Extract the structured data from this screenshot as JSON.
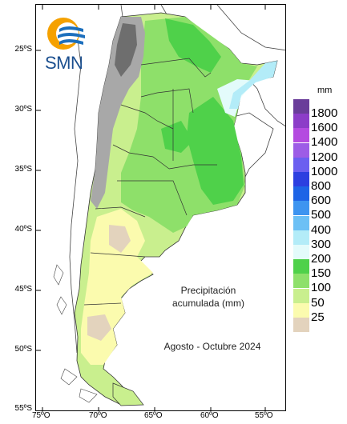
{
  "logo": {
    "text": "SMN"
  },
  "title": {
    "line1": "Precipitación",
    "line2": "acumulada (mm)",
    "period": "Agosto - Octubre 2024"
  },
  "axes": {
    "lat_labels": [
      "25ºS",
      "30ºS",
      "35ºS",
      "40ºS",
      "45ºS",
      "50ºS",
      "55ºS"
    ],
    "lon_labels": [
      "75ºO",
      "70ºO",
      "65ºO",
      "60ºO",
      "55ºO"
    ]
  },
  "legend": {
    "unit": "mm",
    "items": [
      {
        "label": "1800",
        "color": "#6a3d9a"
      },
      {
        "label": "1600",
        "color": "#8c3dc8"
      },
      {
        "label": "1400",
        "color": "#b44be0"
      },
      {
        "label": "1200",
        "color": "#9d5ce6"
      },
      {
        "label": "1000",
        "color": "#6b5ff0"
      },
      {
        "label": "800",
        "color": "#2c3fe0"
      },
      {
        "label": "600",
        "color": "#1e64e6"
      },
      {
        "label": "500",
        "color": "#3d94f0"
      },
      {
        "label": "400",
        "color": "#6cc0f5"
      },
      {
        "label": "300",
        "color": "#b3ecf8"
      },
      {
        "label": "200",
        "color": "#e3fbfb"
      },
      {
        "label": "150",
        "color": "#4fd14a"
      },
      {
        "label": "100",
        "color": "#8ee06a"
      },
      {
        "label": "50",
        "color": "#c9ef8e"
      },
      {
        "label": "25",
        "color": "#fbfbae"
      },
      {
        "label": "",
        "color": "#e3d3bd"
      }
    ]
  }
}
